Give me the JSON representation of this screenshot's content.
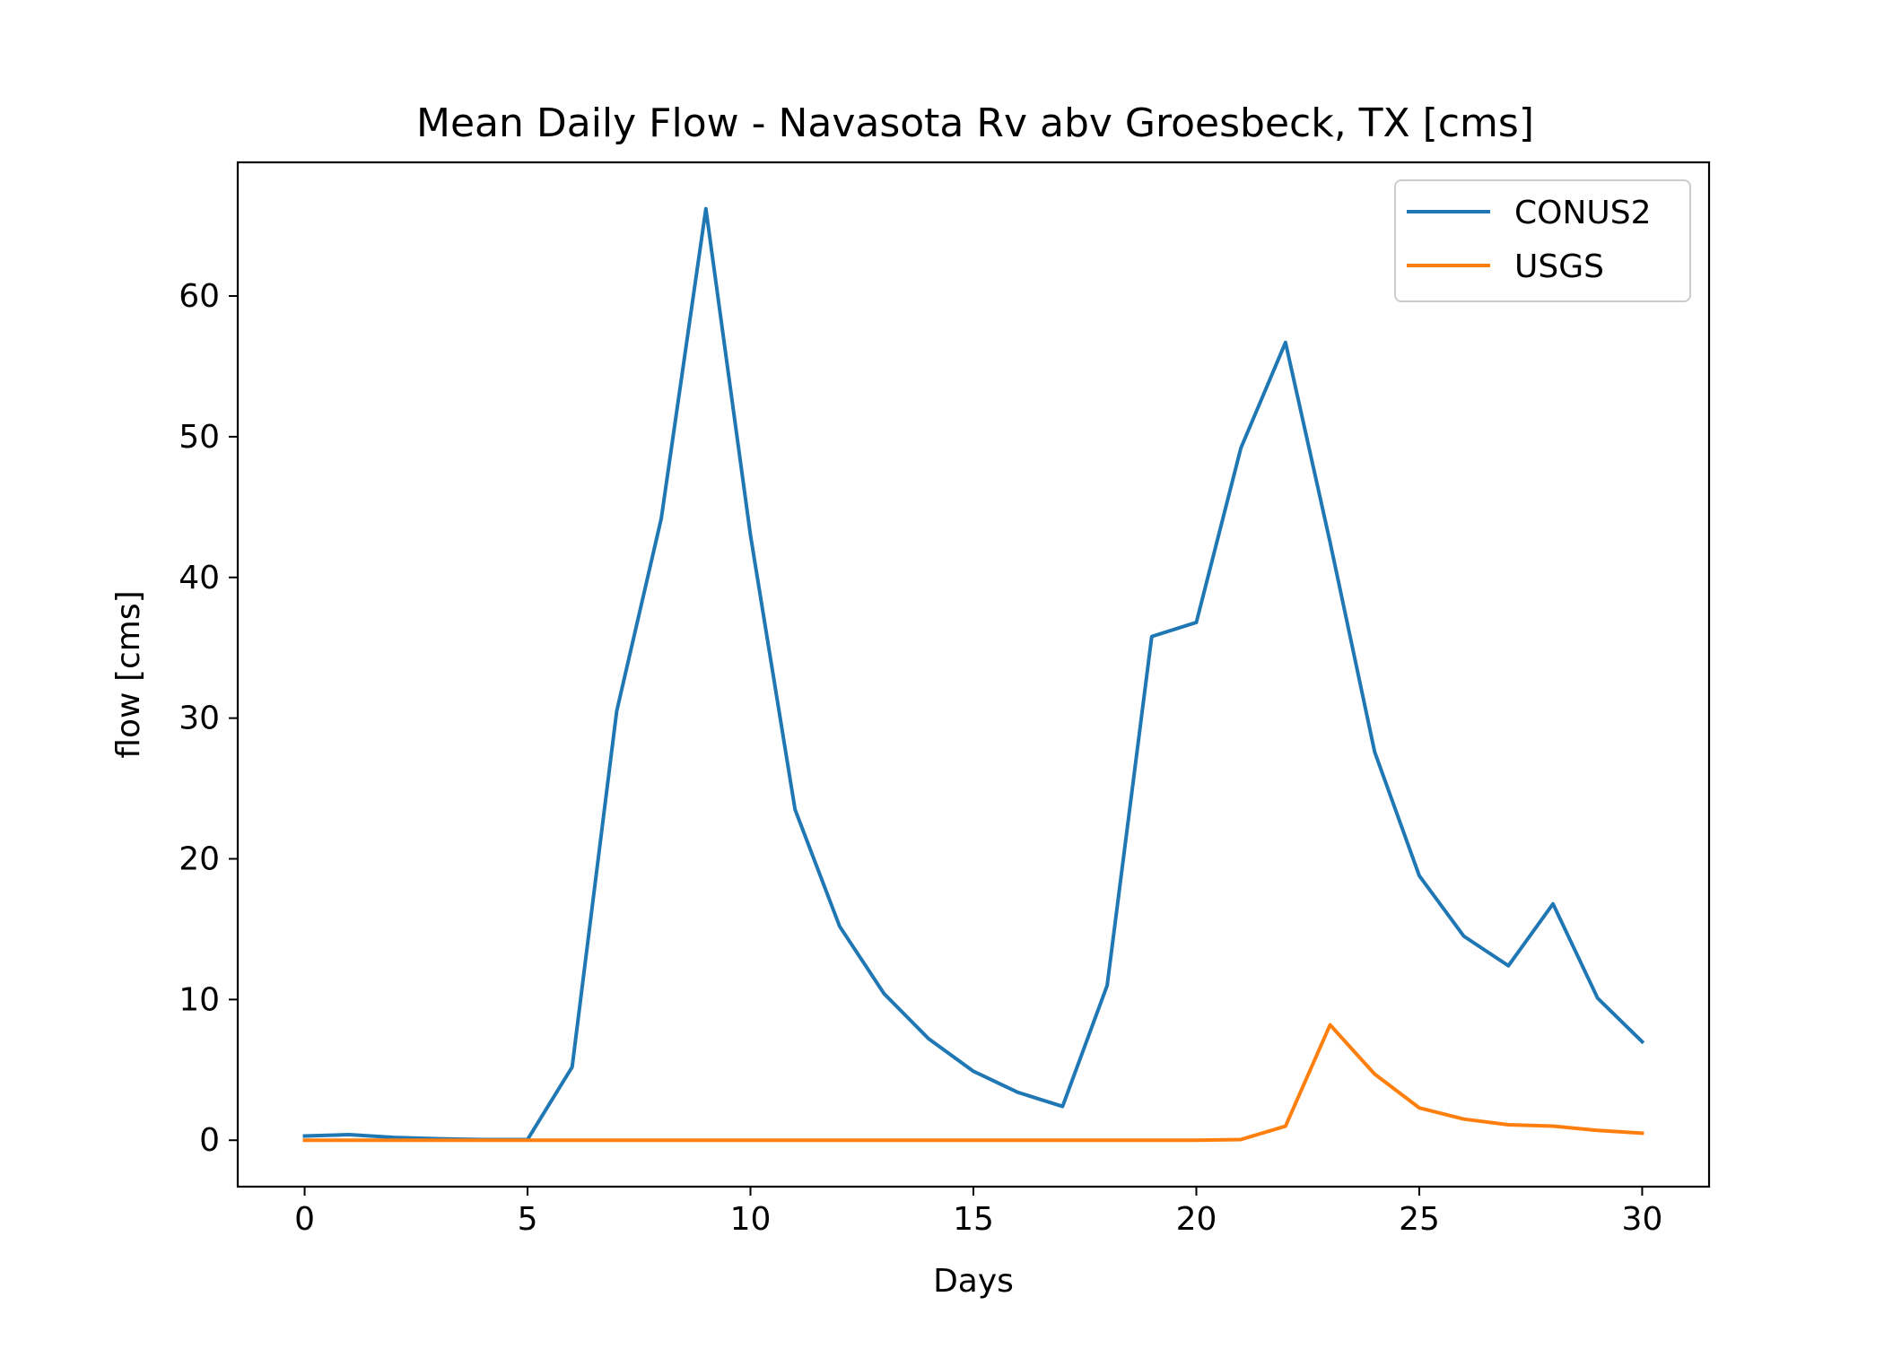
{
  "chart_data": {
    "type": "line",
    "title": "Mean Daily Flow - Navasota Rv abv Groesbeck, TX [cms]",
    "xlabel": "Days",
    "ylabel": "flow [cms]",
    "xlim": [
      -1.5,
      31.5
    ],
    "ylim": [
      -3.3,
      69.5
    ],
    "xticks": [
      0,
      5,
      10,
      15,
      20,
      25,
      30
    ],
    "yticks": [
      0,
      10,
      20,
      30,
      40,
      50,
      60
    ],
    "grid": false,
    "legend_position": "top-right",
    "x": [
      0,
      1,
      2,
      3,
      4,
      5,
      6,
      7,
      8,
      9,
      10,
      11,
      12,
      13,
      14,
      15,
      16,
      17,
      18,
      19,
      20,
      21,
      22,
      23,
      24,
      25,
      26,
      27,
      28,
      29,
      30
    ],
    "series": [
      {
        "name": "CONUS2",
        "color": "#1f77b4",
        "values": [
          0.3,
          0.4,
          0.2,
          0.1,
          0.05,
          0.05,
          5.2,
          30.5,
          44.2,
          66.2,
          43.0,
          23.5,
          15.2,
          10.4,
          7.2,
          4.9,
          3.4,
          2.4,
          11.0,
          35.8,
          36.8,
          49.2,
          56.7,
          42.5,
          27.6,
          18.8,
          14.5,
          12.4,
          16.8,
          10.1,
          7.0
        ]
      },
      {
        "name": "USGS",
        "color": "#ff7f0e",
        "values": [
          0,
          0,
          0,
          0,
          0,
          0,
          0,
          0,
          0,
          0,
          0,
          0,
          0,
          0,
          0,
          0,
          0,
          0,
          0,
          0,
          0,
          0.05,
          1.0,
          8.2,
          4.7,
          2.3,
          1.5,
          1.1,
          1.0,
          0.7,
          0.5
        ]
      }
    ]
  }
}
